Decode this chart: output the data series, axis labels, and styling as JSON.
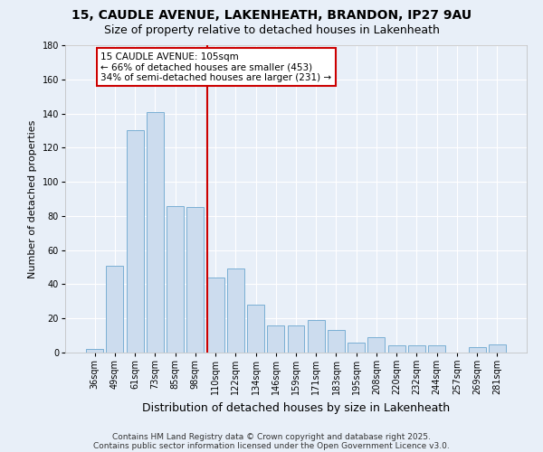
{
  "title1": "15, CAUDLE AVENUE, LAKENHEATH, BRANDON, IP27 9AU",
  "title2": "Size of property relative to detached houses in Lakenheath",
  "xlabel": "Distribution of detached houses by size in Lakenheath",
  "ylabel": "Number of detached properties",
  "categories": [
    "36sqm",
    "49sqm",
    "61sqm",
    "73sqm",
    "85sqm",
    "98sqm",
    "110sqm",
    "122sqm",
    "134sqm",
    "146sqm",
    "159sqm",
    "171sqm",
    "183sqm",
    "195sqm",
    "208sqm",
    "220sqm",
    "232sqm",
    "244sqm",
    "257sqm",
    "269sqm",
    "281sqm"
  ],
  "values": [
    2,
    51,
    130,
    141,
    86,
    85,
    44,
    49,
    28,
    16,
    16,
    19,
    13,
    6,
    9,
    4,
    4,
    4,
    0,
    3,
    5
  ],
  "bar_color": "#ccdcee",
  "bar_edge_color": "#7aafd4",
  "vline_color": "#cc0000",
  "annotation_line1": "15 CAUDLE AVENUE: 105sqm",
  "annotation_line2": "← 66% of detached houses are smaller (453)",
  "annotation_line3": "34% of semi-detached houses are larger (231) →",
  "annotation_box_color": "#ffffff",
  "annotation_box_edge": "#cc0000",
  "ylim": [
    0,
    180
  ],
  "yticks": [
    0,
    20,
    40,
    60,
    80,
    100,
    120,
    140,
    160,
    180
  ],
  "background_color": "#e8eff8",
  "footer1": "Contains HM Land Registry data © Crown copyright and database right 2025.",
  "footer2": "Contains public sector information licensed under the Open Government Licence v3.0.",
  "title1_fontsize": 10,
  "title2_fontsize": 9,
  "xlabel_fontsize": 9,
  "ylabel_fontsize": 8,
  "tick_fontsize": 7,
  "annotation_fontsize": 7.5,
  "footer_fontsize": 6.5
}
